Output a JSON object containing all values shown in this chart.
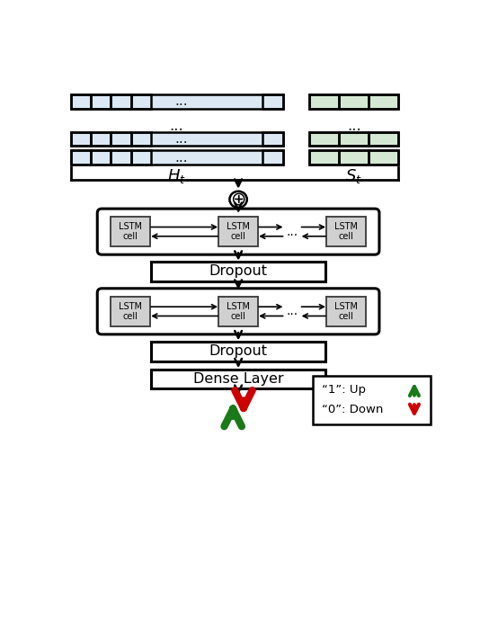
{
  "fig_width": 5.44,
  "fig_height": 6.94,
  "bg_color": "#ffffff",
  "blue_fill": "#dce9f5",
  "blue_edge": "#000000",
  "green_fill": "#d5e8d4",
  "green_edge": "#000000",
  "gray_fill": "#d0d0d0",
  "gray_edge": "#555555",
  "arrow_green": "#1a7a1a",
  "arrow_red": "#cc0000",
  "Ht_label": "$H_t$",
  "St_label": "$S_t$",
  "concat_symbol": "⊕",
  "lstm_label": "LSTM\ncell",
  "dropout_label": "Dropout",
  "dense_label": "Dense Layer",
  "legend_line1": "“1”: Up",
  "legend_line2": "“0”: Down",
  "xlim": [
    0,
    10
  ],
  "ylim": [
    0,
    13.5
  ]
}
